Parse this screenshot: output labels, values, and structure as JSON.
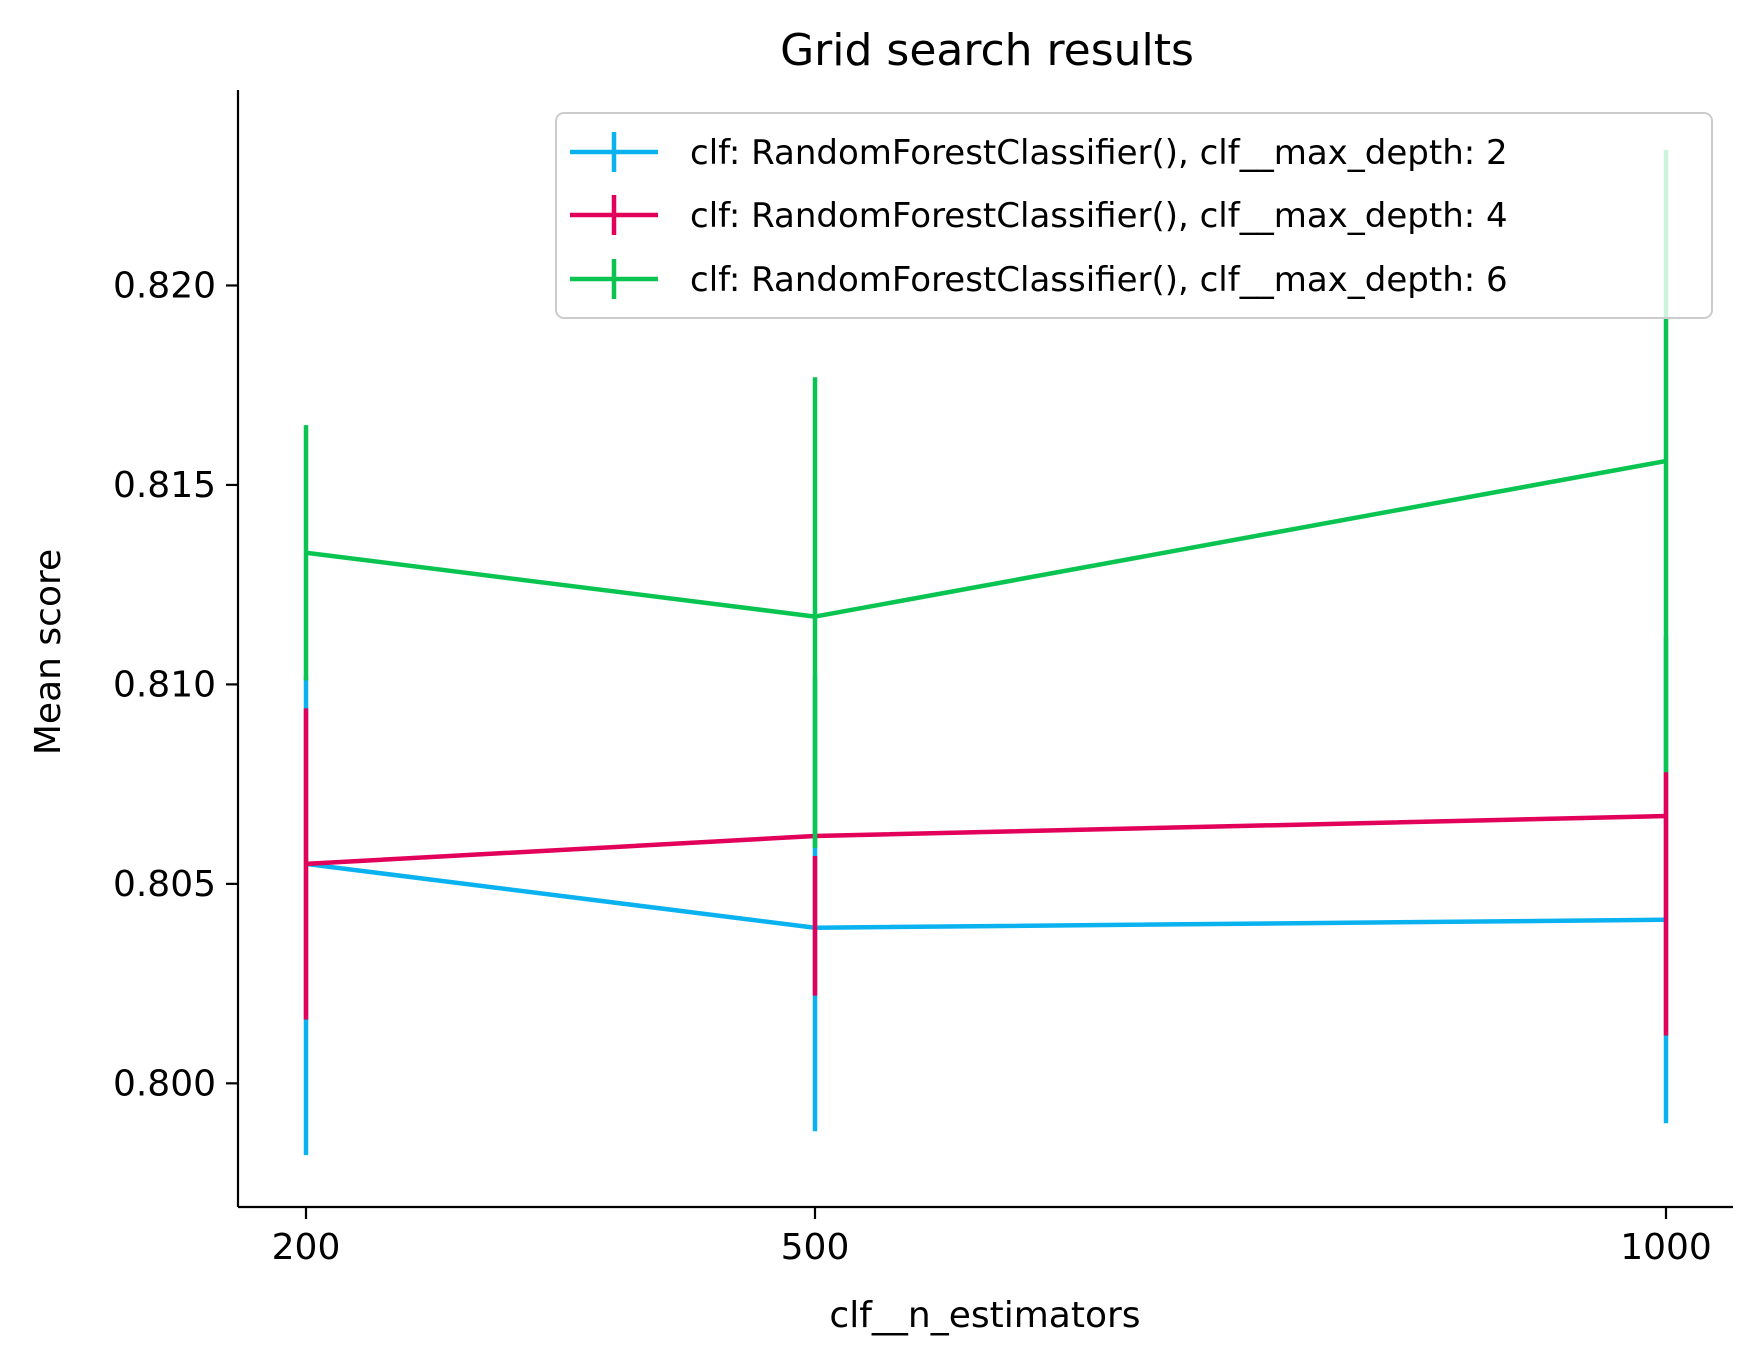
{
  "chart_data": {
    "type": "line",
    "title": "Grid search results",
    "xlabel": "clf__n_estimators",
    "ylabel": "Mean score",
    "x": [
      200,
      500,
      1000
    ],
    "x_tick_labels": [
      "200",
      "500",
      "1000"
    ],
    "y_ticks": [
      0.8,
      0.805,
      0.81,
      0.815,
      0.82
    ],
    "y_tick_labels": [
      "0.800",
      "0.805",
      "0.810",
      "0.815",
      "0.820"
    ],
    "ylim": [
      0.7969,
      0.8249
    ],
    "grid": false,
    "legend_position": "top-right",
    "error_bars": true,
    "series": [
      {
        "name": "clf: RandomForestClassifier(), clf__max_depth: 2",
        "color": "#0AB2F0",
        "values": [
          0.8055,
          0.8039,
          0.8041
        ],
        "error_low": [
          0.7982,
          0.7988,
          0.799
        ],
        "error_high": [
          0.8102,
          0.8102,
          0.8112
        ]
      },
      {
        "name": "clf: RandomForestClassifier(), clf__max_depth: 4",
        "color": "#E2005A",
        "values": [
          0.8055,
          0.8062,
          0.8067
        ],
        "error_low": [
          0.8016,
          0.8022,
          0.8012
        ],
        "error_high": [
          0.8094,
          0.8057,
          0.8078
        ]
      },
      {
        "name": "clf: RandomForestClassifier(), clf__max_depth: 6",
        "color": "#0AC452",
        "values": [
          0.8133,
          0.8117,
          0.8156
        ],
        "error_low": [
          0.8101,
          0.8059,
          0.8078
        ],
        "error_high": [
          0.8165,
          0.8177,
          0.8234
        ]
      }
    ]
  }
}
